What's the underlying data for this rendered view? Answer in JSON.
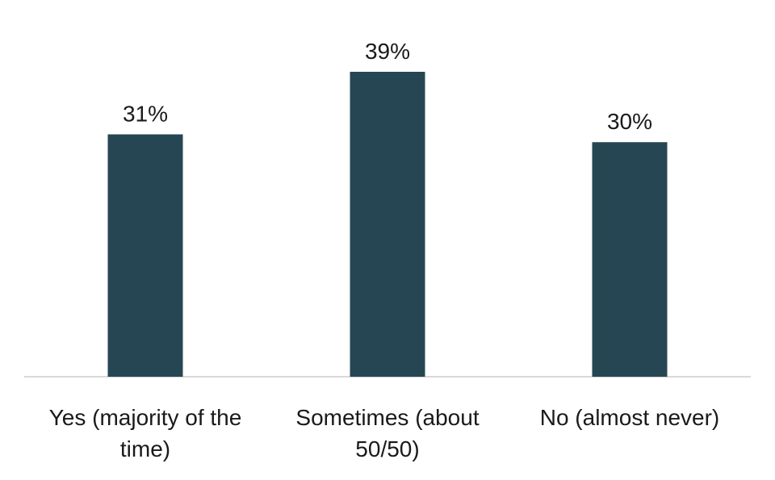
{
  "chart_data": {
    "type": "bar",
    "categories": [
      "Yes (majority of the time)",
      "Sometimes (about 50/50)",
      "No (almost never)"
    ],
    "category_lines": [
      [
        "Yes (majority of the",
        "time)"
      ],
      [
        "Sometimes (about",
        "50/50)"
      ],
      [
        "No (almost never)"
      ]
    ],
    "values": [
      31,
      39,
      30
    ],
    "data_labels": [
      "31%",
      "39%",
      "30%"
    ],
    "title": "",
    "xlabel": "",
    "ylabel": "",
    "ylim": [
      0,
      39
    ],
    "grid": false,
    "legend": "none",
    "bar_color": "#264653",
    "axis_color": "#d9d9d9"
  }
}
